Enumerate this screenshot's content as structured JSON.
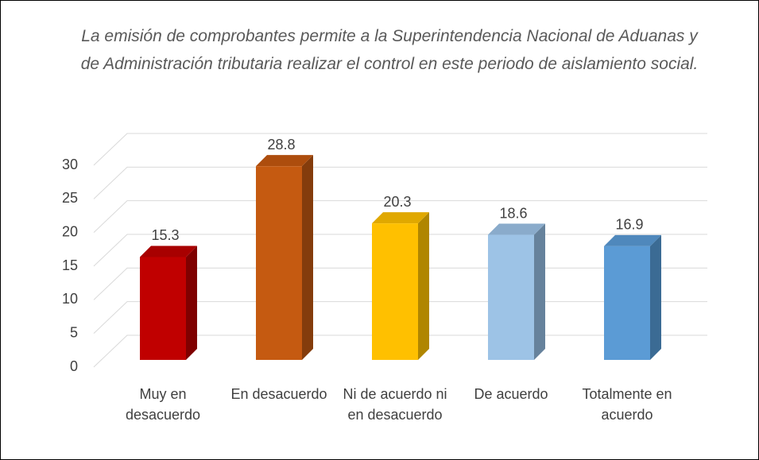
{
  "chart_data": {
    "type": "bar3d",
    "title": "La emisión de comprobantes permite a la Superintendencia Nacional de Aduanas y de Administración tributaria realizar el control en este periodo de aislamiento social.",
    "categories": [
      "Muy en desacuerdo",
      "En desacuerdo",
      "Ni de acuerdo ni en desacuerdo",
      "De acuerdo",
      "Totalmente en acuerdo"
    ],
    "values": [
      15.3,
      28.8,
      20.3,
      18.6,
      16.9
    ],
    "colors": [
      "#c00000",
      "#c55a11",
      "#ffc000",
      "#9dc3e6",
      "#5b9bd5"
    ],
    "side_colors": [
      "#7f0000",
      "#843c0c",
      "#b08600",
      "#66829c",
      "#3b6b94"
    ],
    "top_colors": [
      "#a80000",
      "#ad4d0d",
      "#e0a800",
      "#8aabcb",
      "#4f88bc"
    ],
    "ylim": [
      0,
      30
    ],
    "yticks": [
      0,
      5,
      10,
      15,
      20,
      25,
      30
    ],
    "grid": true
  }
}
